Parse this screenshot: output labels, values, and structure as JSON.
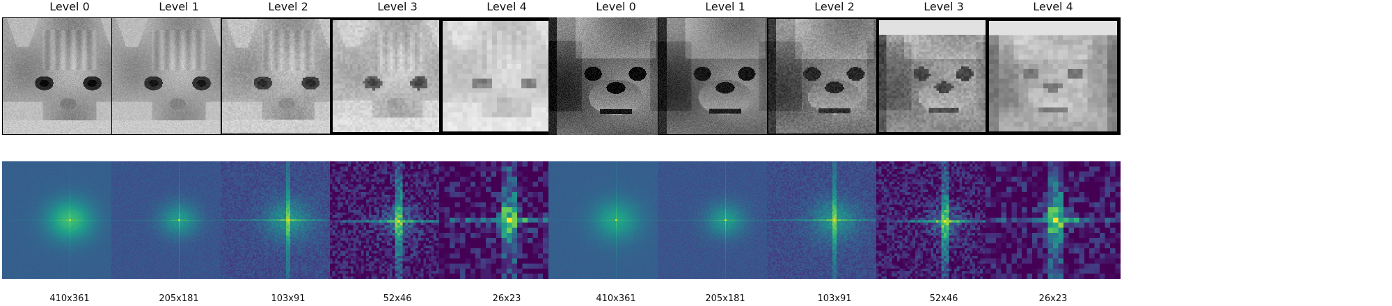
{
  "panels": [
    {
      "title": "Level 0",
      "size": "410x361",
      "subject": "cat",
      "grid": [
        410,
        361
      ],
      "border": "thin"
    },
    {
      "title": "Level 1",
      "size": "205x181",
      "subject": "cat",
      "grid": [
        205,
        181
      ],
      "border": "thin"
    },
    {
      "title": "Level 2",
      "size": "103x91",
      "subject": "cat",
      "grid": [
        103,
        91
      ],
      "border": "medium"
    },
    {
      "title": "Level 3",
      "size": "52x46",
      "subject": "cat",
      "grid": [
        52,
        46
      ],
      "border": "thick"
    },
    {
      "title": "Level 4",
      "size": "26x23",
      "subject": "cat",
      "grid": [
        26,
        23
      ],
      "border": "very-thick"
    },
    {
      "title": "Level 0",
      "size": "410x361",
      "subject": "dog",
      "grid": [
        410,
        361
      ],
      "border": "none"
    },
    {
      "title": "Level 1",
      "size": "205x181",
      "subject": "dog",
      "grid": [
        205,
        181
      ],
      "border": "thin"
    },
    {
      "title": "Level 2",
      "size": "103x91",
      "subject": "dog",
      "grid": [
        103,
        91
      ],
      "border": "medium"
    },
    {
      "title": "Level 3",
      "size": "52x46",
      "subject": "dog",
      "grid": [
        52,
        46
      ],
      "border": "thick"
    },
    {
      "title": "Level 4",
      "size": "26x23",
      "subject": "dog",
      "grid": [
        26,
        23
      ],
      "border": "very-thick"
    }
  ],
  "colors": {
    "background": "#ffffff",
    "text": "#111111",
    "spectrum_colormap": "viridis"
  }
}
